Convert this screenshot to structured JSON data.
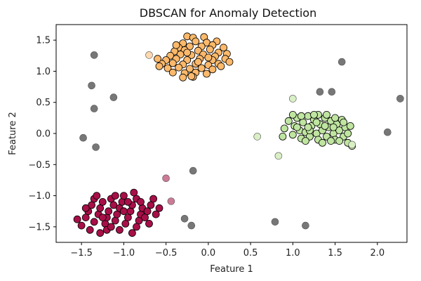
{
  "chart_data": {
    "type": "scatter",
    "title": "DBSCAN for Anomaly Detection",
    "xlabel": "Feature 1",
    "ylabel": "Feature 2",
    "xlim": [
      -1.8,
      2.35
    ],
    "ylim": [
      -1.75,
      1.75
    ],
    "xticks": [
      -1.5,
      -1.0,
      -0.5,
      0.0,
      0.5,
      1.0,
      1.5,
      2.0
    ],
    "yticks": [
      -1.5,
      -1.0,
      -0.5,
      0.0,
      0.5,
      1.0,
      1.5
    ],
    "grid": false,
    "legend": "none",
    "series": [
      {
        "color": "#fdb96b",
        "core": true,
        "points": [
          [
            -0.25,
            1.56
          ],
          [
            -0.18,
            1.54
          ],
          [
            -0.05,
            1.55
          ],
          [
            -0.3,
            1.45
          ],
          [
            -0.15,
            1.48
          ],
          [
            -0.02,
            1.46
          ],
          [
            0.1,
            1.48
          ],
          [
            -0.22,
            1.4
          ],
          [
            -0.35,
            1.38
          ],
          [
            -0.08,
            1.4
          ],
          [
            0.05,
            1.42
          ],
          [
            0.18,
            1.38
          ],
          [
            -0.4,
            1.32
          ],
          [
            -0.28,
            1.34
          ],
          [
            -0.12,
            1.33
          ],
          [
            0.02,
            1.35
          ],
          [
            0.12,
            1.3
          ],
          [
            0.22,
            1.28
          ],
          [
            -0.45,
            1.25
          ],
          [
            -0.33,
            1.27
          ],
          [
            -0.2,
            1.26
          ],
          [
            -0.06,
            1.27
          ],
          [
            0.08,
            1.24
          ],
          [
            -0.5,
            1.18
          ],
          [
            -0.38,
            1.2
          ],
          [
            -0.25,
            1.18
          ],
          [
            -0.1,
            1.2
          ],
          [
            0.05,
            1.18
          ],
          [
            0.2,
            1.2
          ],
          [
            -0.55,
            1.12
          ],
          [
            -0.42,
            1.13
          ],
          [
            -0.3,
            1.11
          ],
          [
            -0.15,
            1.12
          ],
          [
            0.0,
            1.1
          ],
          [
            0.12,
            1.12
          ],
          [
            -0.48,
            1.05
          ],
          [
            -0.35,
            1.06
          ],
          [
            -0.22,
            1.04
          ],
          [
            -0.08,
            1.05
          ],
          [
            0.05,
            1.03
          ],
          [
            -0.42,
            0.98
          ],
          [
            -0.28,
            0.97
          ],
          [
            -0.15,
            0.98
          ],
          [
            -0.02,
            0.96
          ],
          [
            -0.3,
            0.9
          ],
          [
            -0.18,
            0.91
          ],
          [
            -0.58,
            1.08
          ],
          [
            -0.25,
            1.3
          ],
          [
            -0.12,
            1.15
          ],
          [
            0.15,
            1.08
          ],
          [
            -0.38,
            1.42
          ],
          [
            0.0,
            1.22
          ],
          [
            -0.6,
            1.2
          ],
          [
            0.25,
            1.15
          ],
          [
            -0.2,
            0.92
          ]
        ]
      },
      {
        "color": "#bfe5a0",
        "core": true,
        "points": [
          [
            0.9,
            0.08
          ],
          [
            0.95,
            0.2
          ],
          [
            1.0,
            -0.02
          ],
          [
            1.02,
            0.12
          ],
          [
            1.05,
            0.25
          ],
          [
            1.08,
            0.05
          ],
          [
            1.1,
            -0.08
          ],
          [
            1.12,
            0.18
          ],
          [
            1.15,
            0.02
          ],
          [
            1.18,
            0.28
          ],
          [
            1.2,
            -0.05
          ],
          [
            1.22,
            0.12
          ],
          [
            1.25,
            0.22
          ],
          [
            1.28,
            0.0
          ],
          [
            1.3,
            -0.1
          ],
          [
            1.32,
            0.15
          ],
          [
            1.35,
            0.05
          ],
          [
            1.38,
            0.25
          ],
          [
            1.4,
            -0.05
          ],
          [
            1.42,
            0.1
          ],
          [
            1.45,
            0.2
          ],
          [
            1.48,
            0.0
          ],
          [
            1.5,
            -0.1
          ],
          [
            1.52,
            0.15
          ],
          [
            1.55,
            0.05
          ],
          [
            1.58,
            0.22
          ],
          [
            1.6,
            -0.05
          ],
          [
            1.62,
            0.1
          ],
          [
            1.65,
            0.0
          ],
          [
            1.68,
            0.12
          ],
          [
            1.2,
            0.05
          ],
          [
            1.3,
            0.3
          ],
          [
            1.15,
            -0.12
          ],
          [
            1.45,
            -0.12
          ],
          [
            1.35,
            -0.15
          ],
          [
            1.1,
            0.28
          ],
          [
            1.25,
            0.3
          ],
          [
            1.4,
            0.3
          ],
          [
            1.55,
            -0.12
          ],
          [
            1.05,
            0.1
          ],
          [
            1.6,
            0.18
          ],
          [
            1.5,
            0.25
          ],
          [
            1.28,
            0.18
          ],
          [
            1.38,
            0.12
          ],
          [
            1.18,
            0.1
          ],
          [
            0.88,
            -0.05
          ],
          [
            1.65,
            -0.15
          ],
          [
            1.7,
            -0.2
          ],
          [
            1.0,
            0.3
          ],
          [
            1.48,
            0.1
          ]
        ]
      },
      {
        "color": "#a80f48",
        "core": true,
        "points": [
          [
            -1.55,
            -1.38
          ],
          [
            -1.5,
            -1.48
          ],
          [
            -1.45,
            -1.35
          ],
          [
            -1.42,
            -1.25
          ],
          [
            -1.38,
            -1.15
          ],
          [
            -1.35,
            -1.05
          ],
          [
            -1.35,
            -1.42
          ],
          [
            -1.3,
            -1.3
          ],
          [
            -1.28,
            -1.2
          ],
          [
            -1.25,
            -1.1
          ],
          [
            -1.22,
            -1.45
          ],
          [
            -1.2,
            -1.35
          ],
          [
            -1.18,
            -1.25
          ],
          [
            -1.15,
            -1.05
          ],
          [
            -1.12,
            -1.15
          ],
          [
            -1.1,
            -1.4
          ],
          [
            -1.08,
            -1.3
          ],
          [
            -1.05,
            -1.2
          ],
          [
            -1.02,
            -1.1
          ],
          [
            -1.0,
            -1.0
          ],
          [
            -0.98,
            -1.45
          ],
          [
            -0.95,
            -1.35
          ],
          [
            -0.92,
            -1.25
          ],
          [
            -0.9,
            -1.15
          ],
          [
            -0.88,
            -0.95
          ],
          [
            -0.85,
            -1.05
          ],
          [
            -0.82,
            -1.4
          ],
          [
            -0.8,
            -1.3
          ],
          [
            -0.78,
            -1.2
          ],
          [
            -0.75,
            -1.35
          ],
          [
            -0.72,
            -1.25
          ],
          [
            -0.7,
            -1.45
          ],
          [
            -0.68,
            -1.15
          ],
          [
            -0.62,
            -1.3
          ],
          [
            -0.58,
            -1.2
          ],
          [
            -1.2,
            -1.55
          ],
          [
            -1.05,
            -1.55
          ],
          [
            -0.9,
            -1.6
          ],
          [
            -1.28,
            -1.6
          ],
          [
            -1.4,
            -1.55
          ],
          [
            -1.15,
            -1.5
          ],
          [
            -0.95,
            -1.1
          ],
          [
            -1.32,
            -1.0
          ],
          [
            -0.85,
            -1.5
          ],
          [
            -1.0,
            -1.25
          ],
          [
            -1.1,
            -1.0
          ],
          [
            -1.25,
            -1.35
          ],
          [
            -0.8,
            -1.1
          ],
          [
            -0.65,
            -1.05
          ],
          [
            -1.45,
            -1.2
          ]
        ]
      },
      {
        "color": "#fdd9b0",
        "core": false,
        "points": [
          [
            -0.7,
            1.26
          ]
        ]
      },
      {
        "color": "#d9efc5",
        "core": false,
        "points": [
          [
            1.0,
            0.56
          ],
          [
            0.58,
            -0.05
          ],
          [
            0.83,
            -0.36
          ],
          [
            1.7,
            -0.18
          ]
        ]
      },
      {
        "color": "#cc7a96",
        "core": false,
        "points": [
          [
            -0.5,
            -0.72
          ],
          [
            -0.44,
            -1.09
          ]
        ]
      },
      {
        "color": "#777777",
        "core": false,
        "points": [
          [
            -1.35,
            1.26
          ],
          [
            -1.38,
            0.77
          ],
          [
            -1.35,
            0.4
          ],
          [
            -1.12,
            0.58
          ],
          [
            -1.48,
            -0.07
          ],
          [
            -1.33,
            -0.22
          ],
          [
            -0.18,
            -0.6
          ],
          [
            -0.28,
            -1.37
          ],
          [
            -0.2,
            -1.48
          ],
          [
            0.79,
            -1.42
          ],
          [
            1.15,
            -1.48
          ],
          [
            1.32,
            0.67
          ],
          [
            1.46,
            0.67
          ],
          [
            1.58,
            1.15
          ],
          [
            2.12,
            0.02
          ],
          [
            2.27,
            0.56
          ]
        ]
      }
    ]
  }
}
